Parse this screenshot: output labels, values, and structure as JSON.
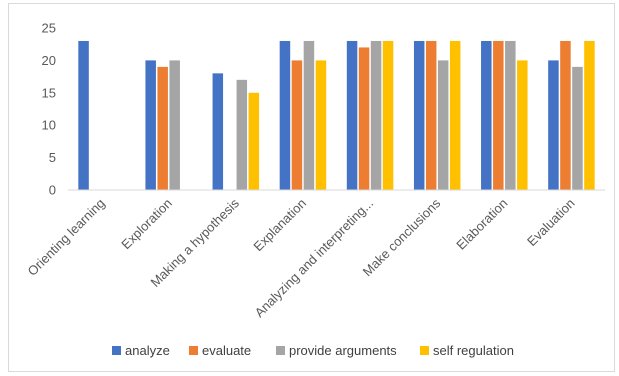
{
  "chart_data": {
    "type": "bar",
    "title": "",
    "xlabel": "",
    "ylabel": "",
    "ylim": [
      0,
      25
    ],
    "yticks": [
      0,
      5,
      10,
      15,
      20,
      25
    ],
    "grid": false,
    "legend_position": "bottom",
    "categories": [
      "Orienting learning",
      "Exploration",
      "Making a hypothesis",
      "Explanation",
      "Analyzing and interpreting...",
      "Make conclusions",
      "Elaboration",
      "Evaluation"
    ],
    "series": [
      {
        "name": "analyze",
        "color": "#4472C4",
        "values": [
          23,
          20,
          18,
          23,
          23,
          23,
          23,
          20
        ]
      },
      {
        "name": "evaluate",
        "color": "#ED7D31",
        "values": [
          0,
          19,
          0,
          20,
          22,
          23,
          23,
          23
        ]
      },
      {
        "name": "provide arguments",
        "color": "#A5A5A5",
        "values": [
          0,
          20,
          17,
          23,
          23,
          20,
          23,
          19
        ]
      },
      {
        "name": "self regulation",
        "color": "#FFC000",
        "values": [
          0,
          0,
          15,
          20,
          23,
          23,
          20,
          23
        ]
      }
    ]
  }
}
